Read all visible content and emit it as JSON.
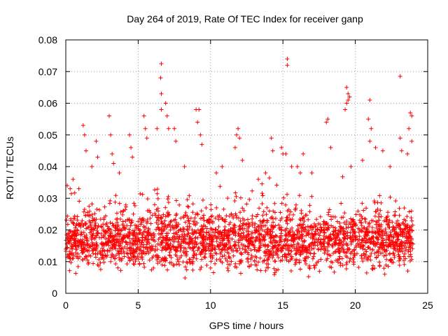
{
  "chart_data": {
    "type": "scatter",
    "title": "Day 264 of 2019, Rate Of TEC Index for receiver ganp",
    "xlabel": "GPS time / hours",
    "ylabel": "ROTI / TECUs",
    "xlim": [
      0,
      25
    ],
    "ylim": [
      0,
      0.08
    ],
    "xticks": [
      0,
      5,
      10,
      15,
      20,
      25
    ],
    "xtick_labels": [
      "0",
      "5",
      "10",
      "15",
      "20",
      "25"
    ],
    "yticks": [
      0,
      0.01,
      0.02,
      0.03,
      0.04,
      0.05,
      0.06,
      0.07,
      0.08
    ],
    "ytick_labels": [
      "0",
      "0.01",
      "0.02",
      "0.03",
      "0.04",
      "0.05",
      "0.06",
      "0.07",
      "0.08"
    ],
    "grid": true,
    "marker": "plus",
    "color": "#ff0000",
    "series": [
      {
        "name": "ROTI",
        "x_range": [
          0,
          24
        ],
        "typical_range": [
          0.004,
          0.026
        ],
        "points": [
          [
            0.1,
            0.034
          ],
          [
            0.3,
            0.033
          ],
          [
            0.5,
            0.036
          ],
          [
            0.9,
            0.033
          ],
          [
            1.2,
            0.053
          ],
          [
            1.3,
            0.05
          ],
          [
            1.4,
            0.045
          ],
          [
            1.8,
            0.04
          ],
          [
            2.1,
            0.048
          ],
          [
            2.2,
            0.043
          ],
          [
            3.0,
            0.056
          ],
          [
            3.1,
            0.05
          ],
          [
            3.2,
            0.044
          ],
          [
            3.3,
            0.041
          ],
          [
            3.7,
            0.038
          ],
          [
            4.4,
            0.05
          ],
          [
            4.5,
            0.046
          ],
          [
            4.6,
            0.043
          ],
          [
            5.4,
            0.056
          ],
          [
            5.5,
            0.052
          ],
          [
            5.6,
            0.049
          ],
          [
            6.3,
            0.052
          ],
          [
            6.6,
            0.0725
          ],
          [
            6.55,
            0.068
          ],
          [
            6.6,
            0.063
          ],
          [
            6.6,
            0.058
          ],
          [
            6.9,
            0.06
          ],
          [
            7.0,
            0.056
          ],
          [
            7.1,
            0.052
          ],
          [
            7.5,
            0.052
          ],
          [
            7.6,
            0.048
          ],
          [
            8.2,
            0.04
          ],
          [
            9.0,
            0.058
          ],
          [
            9.2,
            0.058
          ],
          [
            9.1,
            0.054
          ],
          [
            9.3,
            0.05
          ],
          [
            9.4,
            0.047
          ],
          [
            10.4,
            0.038
          ],
          [
            10.8,
            0.04
          ],
          [
            11.8,
            0.05
          ],
          [
            11.9,
            0.052
          ],
          [
            12.0,
            0.049
          ],
          [
            11.7,
            0.046
          ],
          [
            12.2,
            0.042
          ],
          [
            13.8,
            0.038
          ],
          [
            13.3,
            0.036
          ],
          [
            14.2,
            0.049
          ],
          [
            14.3,
            0.045
          ],
          [
            14.9,
            0.046
          ],
          [
            15.0,
            0.044
          ],
          [
            15.3,
            0.074
          ],
          [
            15.3,
            0.072
          ],
          [
            15.2,
            0.044
          ],
          [
            15.6,
            0.04
          ],
          [
            16.0,
            0.04
          ],
          [
            16.2,
            0.038
          ],
          [
            16.4,
            0.044
          ],
          [
            17.0,
            0.038
          ],
          [
            18.0,
            0.054
          ],
          [
            18.1,
            0.055
          ],
          [
            18.3,
            0.046
          ],
          [
            19.4,
            0.065
          ],
          [
            19.5,
            0.063
          ],
          [
            19.5,
            0.061
          ],
          [
            19.4,
            0.06
          ],
          [
            19.6,
            0.062
          ],
          [
            19.3,
            0.058
          ],
          [
            19.7,
            0.04
          ],
          [
            20.5,
            0.042
          ],
          [
            21.0,
            0.061
          ],
          [
            20.9,
            0.055
          ],
          [
            21.1,
            0.052
          ],
          [
            21.0,
            0.048
          ],
          [
            21.4,
            0.046
          ],
          [
            21.9,
            0.045
          ],
          [
            22.4,
            0.04
          ],
          [
            23.1,
            0.0685
          ],
          [
            23.1,
            0.049
          ],
          [
            23.2,
            0.045
          ],
          [
            23.8,
            0.057
          ],
          [
            23.9,
            0.056
          ],
          [
            23.7,
            0.052
          ],
          [
            23.9,
            0.048
          ],
          [
            23.6,
            0.044
          ]
        ]
      }
    ]
  }
}
